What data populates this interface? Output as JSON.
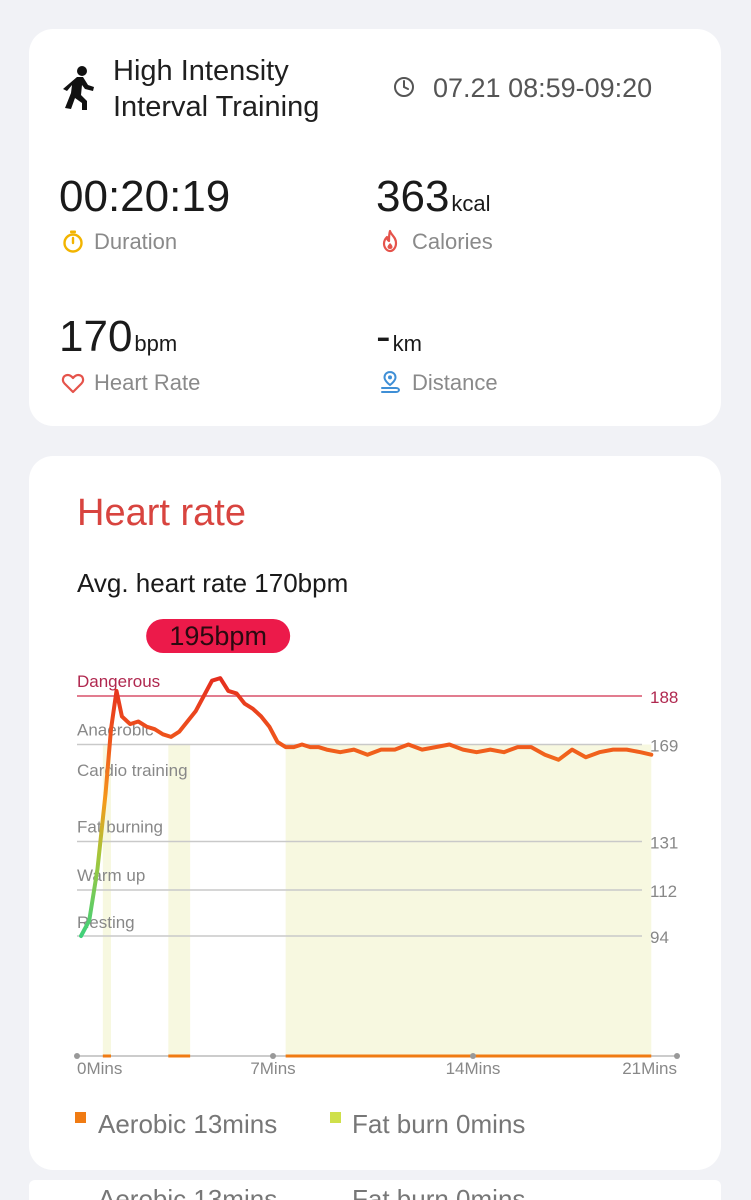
{
  "workout": {
    "title": "High Intensity Interval Training",
    "time_range": "07.21 08:59-09:20",
    "icon": "running-person-icon"
  },
  "metrics": {
    "duration": {
      "value": "00:20:19",
      "unit": "",
      "label": "Duration",
      "icon": "stopwatch-icon",
      "color": "#f2b400"
    },
    "calories": {
      "value": "363",
      "unit": "kcal",
      "label": "Calories",
      "icon": "flame-icon",
      "color": "#e5534b"
    },
    "heart_rate": {
      "value": "170",
      "unit": "bpm",
      "label": "Heart Rate",
      "icon": "heart-icon",
      "color": "#e5534b"
    },
    "distance": {
      "value": "-",
      "unit": "km",
      "label": "Distance",
      "icon": "location-pin-icon",
      "color": "#3f8fd6"
    }
  },
  "heart_rate_card": {
    "title": "Heart rate",
    "avg_text": "Avg. heart rate 170bpm",
    "legend": [
      {
        "label": "Aerobic 13mins",
        "color": "#f07b13"
      },
      {
        "label": "Fat burn 0mins",
        "color": "#cfe04a"
      }
    ]
  },
  "colors": {
    "accent_red": "#d8443f",
    "peak_badge": "#ec1a4a",
    "zone_fill": "#f7f8e0"
  },
  "chart_data": {
    "type": "line",
    "title": "",
    "xlabel": "",
    "ylabel": "",
    "peak_label": "195bpm",
    "x_ticks": [
      "0Mins",
      "7Mins",
      "14Mins",
      "21Mins"
    ],
    "xlim": [
      0,
      21
    ],
    "ylim": [
      55,
      200
    ],
    "zones": [
      {
        "name": "Dangerous",
        "threshold": 188
      },
      {
        "name": "Anaerobic",
        "threshold": 169
      },
      {
        "name": "Cardio training",
        "threshold": null
      },
      {
        "name": "Fat burning",
        "threshold": 131
      },
      {
        "name": "Warm up",
        "threshold": 112
      },
      {
        "name": "Resting",
        "threshold": 94
      }
    ],
    "threshold_labels": [
      "188",
      "169",
      "131",
      "112",
      "94"
    ],
    "series": [
      {
        "x": [
          0,
          0.3,
          0.6,
          0.9,
          1.1,
          1.3,
          1.5,
          1.8,
          2.1,
          2.4,
          2.7,
          3.0,
          3.3,
          3.6,
          3.9,
          4.2,
          4.5,
          4.8,
          5.1,
          5.4,
          5.7,
          6.0,
          6.3,
          6.6,
          6.9,
          7.2,
          7.5,
          7.8,
          8.1,
          8.4,
          8.7,
          9.0,
          9.5,
          10.0,
          10.5,
          11.0,
          11.5,
          12.0,
          12.5,
          13.0,
          13.5,
          14.0,
          14.5,
          15.0,
          15.5,
          16.0,
          16.5,
          17.0,
          17.5,
          18.0,
          18.5,
          19.0,
          19.5,
          20.0,
          20.5,
          20.9
        ],
        "y": [
          94,
          100,
          120,
          150,
          175,
          190,
          180,
          177,
          178,
          176,
          175,
          173,
          172,
          174,
          178,
          182,
          188,
          194,
          195,
          190,
          189,
          185,
          183,
          180,
          176,
          170,
          168,
          168,
          169,
          168,
          168,
          167,
          166,
          167,
          165,
          167,
          167,
          169,
          167,
          168,
          169,
          167,
          166,
          167,
          166,
          168,
          168,
          165,
          163,
          167,
          164,
          166,
          167,
          167,
          166,
          165
        ]
      }
    ],
    "highlight_bands": [
      {
        "from": 0.8,
        "to": 1.1
      },
      {
        "from": 3.2,
        "to": 4.0
      },
      {
        "from": 7.5,
        "to": 20.9
      }
    ],
    "baseline_marks": [
      {
        "from": 0.8,
        "to": 1.1
      },
      {
        "from": 3.2,
        "to": 4.0
      },
      {
        "from": 7.5,
        "to": 20.9
      }
    ]
  }
}
